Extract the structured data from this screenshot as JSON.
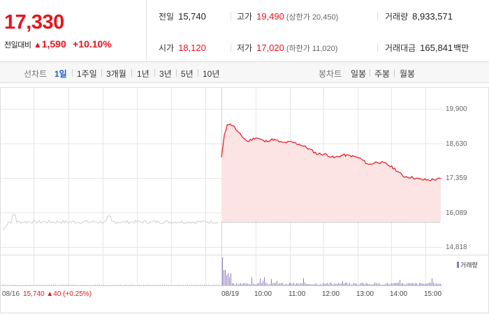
{
  "quote": {
    "price": "17,330",
    "change_label": "전일대비",
    "change_arrow": "▲",
    "change_value": "1,590",
    "change_pct": "+10.10%",
    "prev_close_label": "전일",
    "prev_close": "15,740",
    "open_label": "시가",
    "open": "18,120",
    "high_label": "고가",
    "high": "19,490",
    "upper_limit": "(상한가 20,450)",
    "low_label": "저가",
    "low": "17,020",
    "lower_limit": "(하한가 11,020)",
    "volume_label": "거래량",
    "volume": "8,933,571",
    "amount_label": "거래대금",
    "amount": "165,841",
    "amount_unit": "백만"
  },
  "tabs": {
    "line_label": "선차트",
    "line": [
      "1일",
      "1주일",
      "3개월",
      "1년",
      "3년",
      "5년",
      "10년"
    ],
    "candle_label": "봉차트",
    "candle": [
      "일봉",
      "주봉",
      "월봉"
    ]
  },
  "chart": {
    "y_ticks": [
      "19,900",
      "18,630",
      "17,359",
      "16,089",
      "14,818"
    ],
    "x_ticks": [
      "08/16",
      "08/19",
      "10:00",
      "11:00",
      "12:00",
      "13:00",
      "14:00",
      "15:00"
    ],
    "prev_close_note": "15,740 ▲40 (+0.25%)",
    "volume_legend": "거래량",
    "up_color": "#e5141c",
    "fill_color": "#fde4e4",
    "prev_line_color": "#cfcfcf",
    "volume_color": "#8f7bc0"
  },
  "chart_data": {
    "type": "area",
    "ylim": [
      14818,
      19900
    ],
    "y_ticks": [
      19900,
      18630,
      17359,
      16089,
      14818
    ],
    "series": [
      {
        "x": [
          "08/19 09:00",
          "09:05",
          "09:10",
          "09:20",
          "09:30",
          "09:45",
          "10:00",
          "10:15",
          "10:30",
          "10:45",
          "11:00",
          "11:15",
          "11:30",
          "11:45",
          "12:00",
          "12:15",
          "12:30",
          "12:45",
          "13:00",
          "13:15",
          "13:30",
          "13:45",
          "14:00",
          "14:15",
          "14:30",
          "14:45",
          "15:00",
          "15:20"
        ],
        "values": [
          18120,
          18900,
          19350,
          19300,
          19000,
          18700,
          18850,
          18700,
          18780,
          18650,
          18680,
          18600,
          18450,
          18250,
          18230,
          18100,
          18200,
          18170,
          18080,
          17850,
          17950,
          17880,
          17700,
          17420,
          17380,
          17300,
          17280,
          17330
        ]
      }
    ],
    "prev_day_close": 15740,
    "prev_day_change": 40,
    "prev_day_change_pct": 0.25
  }
}
